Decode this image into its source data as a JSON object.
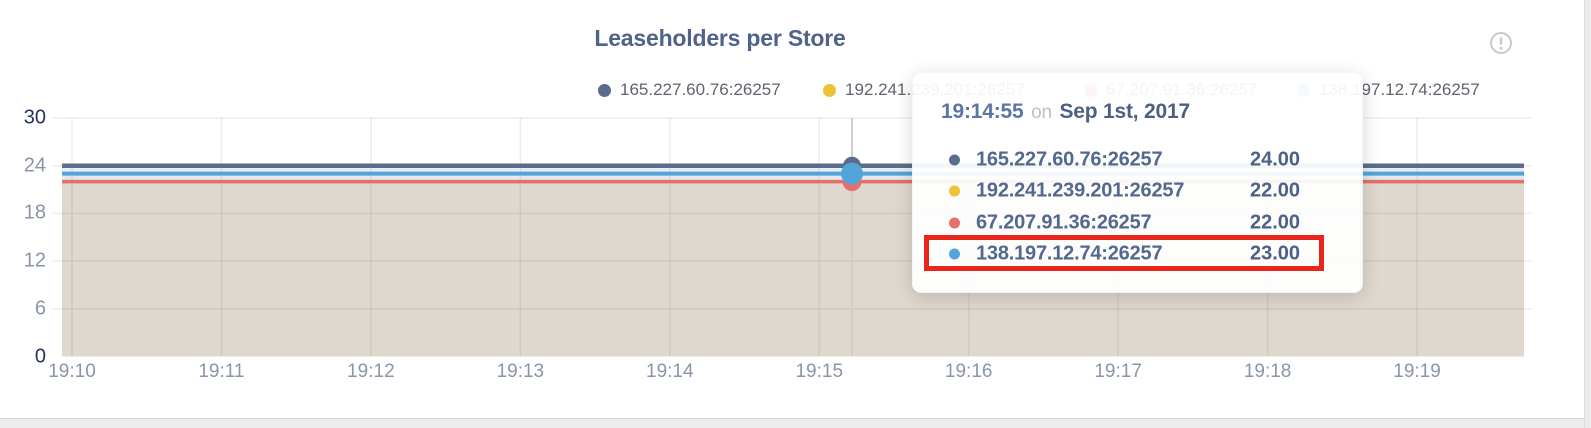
{
  "card": {
    "title": "Leaseholders per Store"
  },
  "info_icon": "circled-exclamation",
  "legend": {
    "items": [
      {
        "label": "165.227.60.76:26257",
        "color": "#5c6c8c"
      },
      {
        "label": "192.241.239.201:26257",
        "color": "#edc237"
      },
      {
        "label": "67.207.91.36:26257",
        "color": "#e56f6a"
      },
      {
        "label": "138.197.12.74:26257",
        "color": "#51a5da"
      }
    ]
  },
  "tooltip": {
    "time": "19:14:55",
    "connector": "on",
    "date": "Sep 1st, 2017",
    "rows": [
      {
        "label": "165.227.60.76:26257",
        "value": "24.00",
        "color": "#5c6c8c"
      },
      {
        "label": "192.241.239.201:26257",
        "value": "22.00",
        "color": "#edc237"
      },
      {
        "label": "67.207.91.36:26257",
        "value": "22.00",
        "color": "#e56f6a"
      },
      {
        "label": "138.197.12.74:26257",
        "value": "23.00",
        "color": "#51a5da"
      }
    ],
    "highlighted_row": 3
  },
  "annotation": {
    "highlight_color": "#e8261c"
  },
  "chart_data": {
    "type": "area",
    "title": "Leaseholders per Store",
    "x": [
      "19:10",
      "19:11",
      "19:12",
      "19:13",
      "19:14",
      "19:15",
      "19:16",
      "19:17",
      "19:18",
      "19:19"
    ],
    "series": [
      {
        "name": "165.227.60.76:26257",
        "color": "#5c6c8c",
        "values": [
          24,
          24,
          24,
          24,
          24,
          24,
          24,
          24,
          24,
          24
        ]
      },
      {
        "name": "192.241.239.201:26257",
        "color": "#edc237",
        "values": [
          22,
          22,
          22,
          22,
          22,
          22,
          22,
          22,
          22,
          22
        ]
      },
      {
        "name": "67.207.91.36:26257",
        "color": "#e56f6a",
        "values": [
          22,
          22,
          22,
          22,
          22,
          22,
          22,
          22,
          22,
          22
        ]
      },
      {
        "name": "138.197.12.74:26257",
        "color": "#51a5da",
        "values": [
          23,
          23,
          23,
          23,
          23,
          23,
          23,
          23,
          23,
          23
        ]
      }
    ],
    "ylim": [
      0,
      30
    ],
    "yticks": [
      0,
      6,
      12,
      18,
      24,
      30
    ],
    "grid": true,
    "legend_position": "top",
    "area_bands": [
      {
        "from": 24,
        "to": 23,
        "color": "#e7edf4"
      },
      {
        "from": 23,
        "to": 22,
        "color": "#e2e8f1"
      },
      {
        "from": 22,
        "to": 0,
        "color": "#ded6cc"
      }
    ],
    "hover": {
      "time": "19:14:55",
      "date": "Sep 1st, 2017",
      "values": {
        "165.227.60.76:26257": 24,
        "192.241.239.201:26257": 22,
        "67.207.91.36:26257": 22,
        "138.197.12.74:26257": 23
      }
    }
  }
}
